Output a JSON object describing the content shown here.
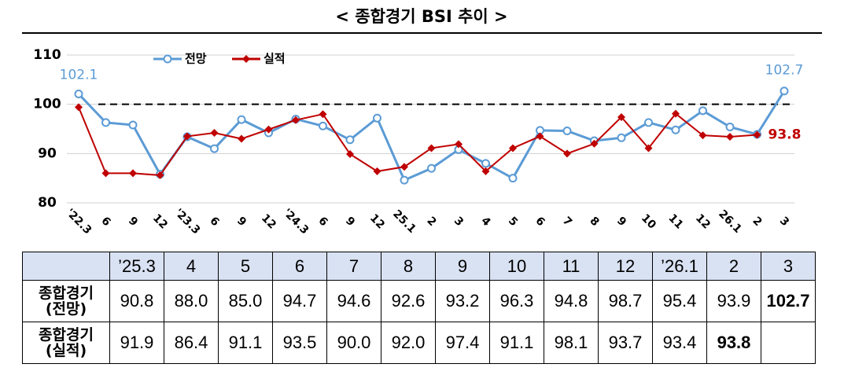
{
  "chart_data": {
    "type": "line",
    "title": "< 종합경기 BSI 추이 >",
    "categories": [
      "'22.3",
      "6",
      "9",
      "12",
      "'23.3",
      "6",
      "9",
      "12",
      "'24.3",
      "6",
      "9",
      "12",
      "25.1",
      "2",
      "3",
      "4",
      "5",
      "6",
      "7",
      "8",
      "9",
      "10",
      "11",
      "12",
      "26.1",
      "2",
      "3"
    ],
    "series": [
      {
        "name": "전망",
        "color": "#5b9bd5",
        "values": [
          102.1,
          96.3,
          95.8,
          85.8,
          93.4,
          91.0,
          96.9,
          94.2,
          97.0,
          95.6,
          92.8,
          97.2,
          84.6,
          87.0,
          90.8,
          88.0,
          85.0,
          94.7,
          94.6,
          92.6,
          93.2,
          96.3,
          94.8,
          98.7,
          95.4,
          93.9,
          102.7
        ]
      },
      {
        "name": "실적",
        "color": "#c00000",
        "values": [
          99.4,
          86.0,
          86.0,
          85.6,
          93.5,
          94.2,
          93.0,
          94.9,
          96.8,
          98.0,
          89.9,
          86.4,
          87.3,
          91.1,
          91.9,
          86.4,
          91.1,
          93.5,
          90.0,
          92.0,
          97.4,
          91.1,
          98.1,
          93.7,
          93.4,
          93.8,
          null
        ]
      }
    ],
    "ylim": [
      80,
      110
    ],
    "yticks": [
      80,
      90,
      100,
      110
    ],
    "reference_line": 100,
    "grid": true,
    "legend": "top"
  },
  "table": {
    "header": [
      "’25.3",
      "4",
      "5",
      "6",
      "7",
      "8",
      "9",
      "10",
      "11",
      "12",
      "’26.1",
      "2",
      "3"
    ],
    "rows": [
      {
        "label": [
          "종합경기",
          "(전망)"
        ],
        "cells": [
          "90.8",
          "88.0",
          "85.0",
          "94.7",
          "94.6",
          "92.6",
          "93.2",
          "96.3",
          "94.8",
          "98.7",
          "95.4",
          "93.9",
          "102.7"
        ]
      },
      {
        "label": [
          "종합경기",
          "(실적)"
        ],
        "cells": [
          "91.9",
          "86.4",
          "91.1",
          "93.5",
          "90.0",
          "92.0",
          "97.4",
          "91.1",
          "98.1",
          "93.7",
          "93.4",
          "93.8"
        ]
      }
    ]
  }
}
